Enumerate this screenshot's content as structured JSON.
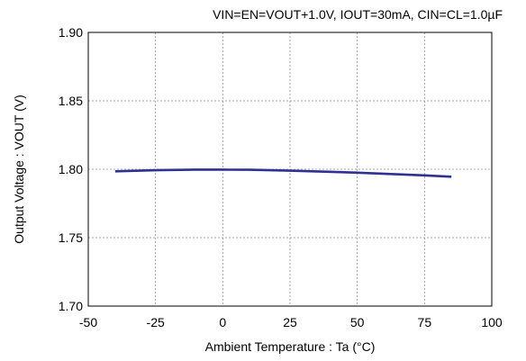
{
  "chart_data": {
    "type": "line",
    "title": "",
    "conditions": "VIN=EN=VOUT+1.0V, IOUT=30mA, CIN=CL=1.0µF",
    "xlabel": "Ambient Temperature : Ta (°C)",
    "ylabel": "Output Voltage : VOUT (V)",
    "xlim": [
      -50,
      100
    ],
    "ylim": [
      1.7,
      1.9
    ],
    "xticks": [
      "-50",
      "-25",
      "0",
      "25",
      "50",
      "75",
      "100"
    ],
    "yticks": [
      "1.70",
      "1.75",
      "1.80",
      "1.85",
      "1.90"
    ],
    "grid": "dashed",
    "legend": "none",
    "series": [
      {
        "color": "#2e3192",
        "x": [
          -40,
          -25,
          -10,
          0,
          10,
          25,
          50,
          75,
          85
        ],
        "y": [
          1.7985,
          1.7993,
          1.7997,
          1.7997,
          1.7996,
          1.799,
          1.7975,
          1.7955,
          1.7945
        ]
      }
    ]
  }
}
